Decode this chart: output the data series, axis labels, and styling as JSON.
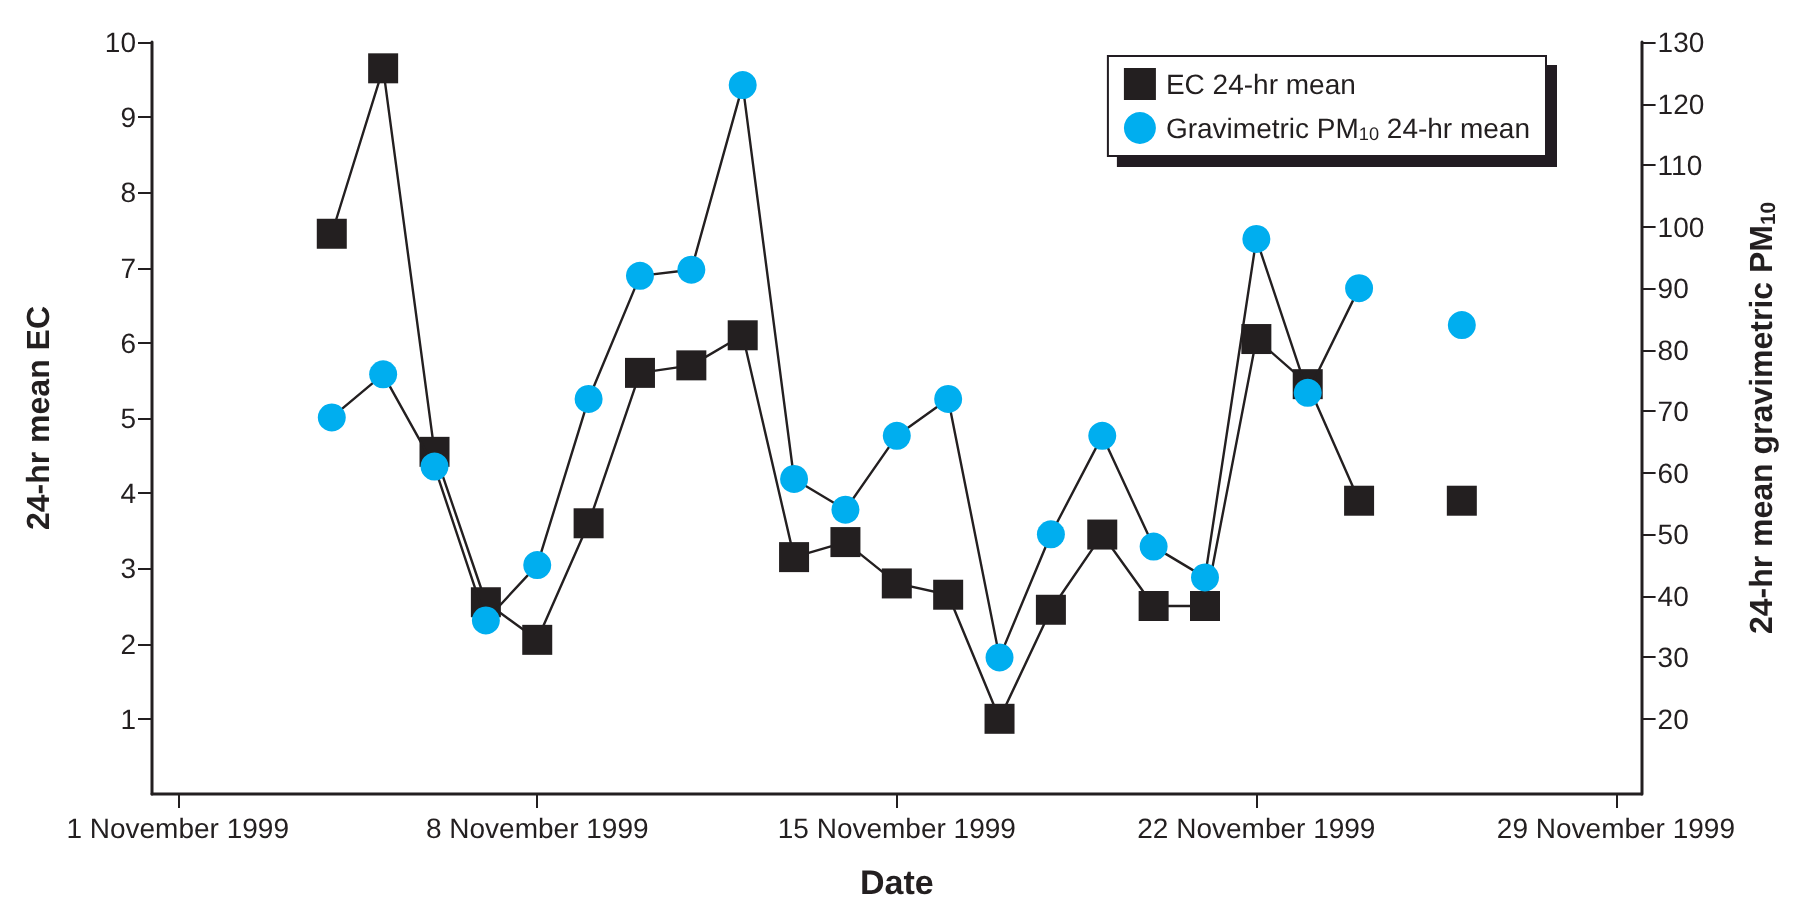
{
  "chart_data": {
    "type": "line",
    "xlabel": "Date",
    "ylabel": "24-hr mean EC",
    "y2label": "24-hr mean gravimetric PM$_{10}$",
    "x": [
      "1999-11-04",
      "1999-11-05",
      "1999-11-06",
      "1999-11-07",
      "1999-11-08",
      "1999-11-09",
      "1999-11-10",
      "1999-11-11",
      "1999-11-12",
      "1999-11-13",
      "1999-11-14",
      "1999-11-15",
      "1999-11-16",
      "1999-11-17",
      "1999-11-18",
      "1999-11-19",
      "1999-11-20",
      "1999-11-21",
      "1999-11-22",
      "1999-11-23",
      "1999-11-24",
      "1999-11-25",
      "1999-11-26"
    ],
    "series": [
      {
        "name": "EC 24-hr mean",
        "color": "#231f20",
        "marker": "square",
        "values": [
          7.45,
          9.65,
          4.55,
          2.55,
          2.05,
          3.6,
          5.6,
          5.7,
          6.1,
          3.15,
          3.35,
          2.8,
          2.65,
          1.0,
          2.45,
          3.45,
          2.5,
          2.5,
          6.05,
          5.45,
          3.9,
          null,
          3.9
        ]
      },
      {
        "name": "Gravimetric PM$_{10}$ 24-hr mean",
        "color": "#00aeef",
        "marker": "circle",
        "axis": "y2",
        "values": [
          69,
          76,
          61,
          36,
          45,
          72,
          92,
          93,
          123,
          59,
          54,
          66,
          72,
          30,
          50,
          66,
          48,
          43,
          98,
          73,
          90,
          null,
          84
        ]
      }
    ],
    "xlim": [
      "1999-10-31T12:00",
      "1999-11-29T12:00"
    ],
    "xticks": [
      {
        "value": "1999-11-01",
        "label": "1 November 1999"
      },
      {
        "value": "1999-11-08",
        "label": "8 November 1999"
      },
      {
        "value": "1999-11-15",
        "label": "15 November 1999"
      },
      {
        "value": "1999-11-22",
        "label": "22 November 1999"
      },
      {
        "value": "1999-11-29",
        "label": "29 November 1999"
      }
    ],
    "ylim": [
      0,
      10
    ],
    "yticks": [
      1,
      2,
      3,
      4,
      5,
      6,
      7,
      8,
      9,
      10
    ],
    "y2lim": [
      7.8,
      130
    ],
    "y2ticks": [
      20,
      30,
      40,
      50,
      60,
      70,
      80,
      90,
      100,
      110,
      120,
      130
    ],
    "grid": false,
    "legend": "top right",
    "line_style": "solid"
  }
}
